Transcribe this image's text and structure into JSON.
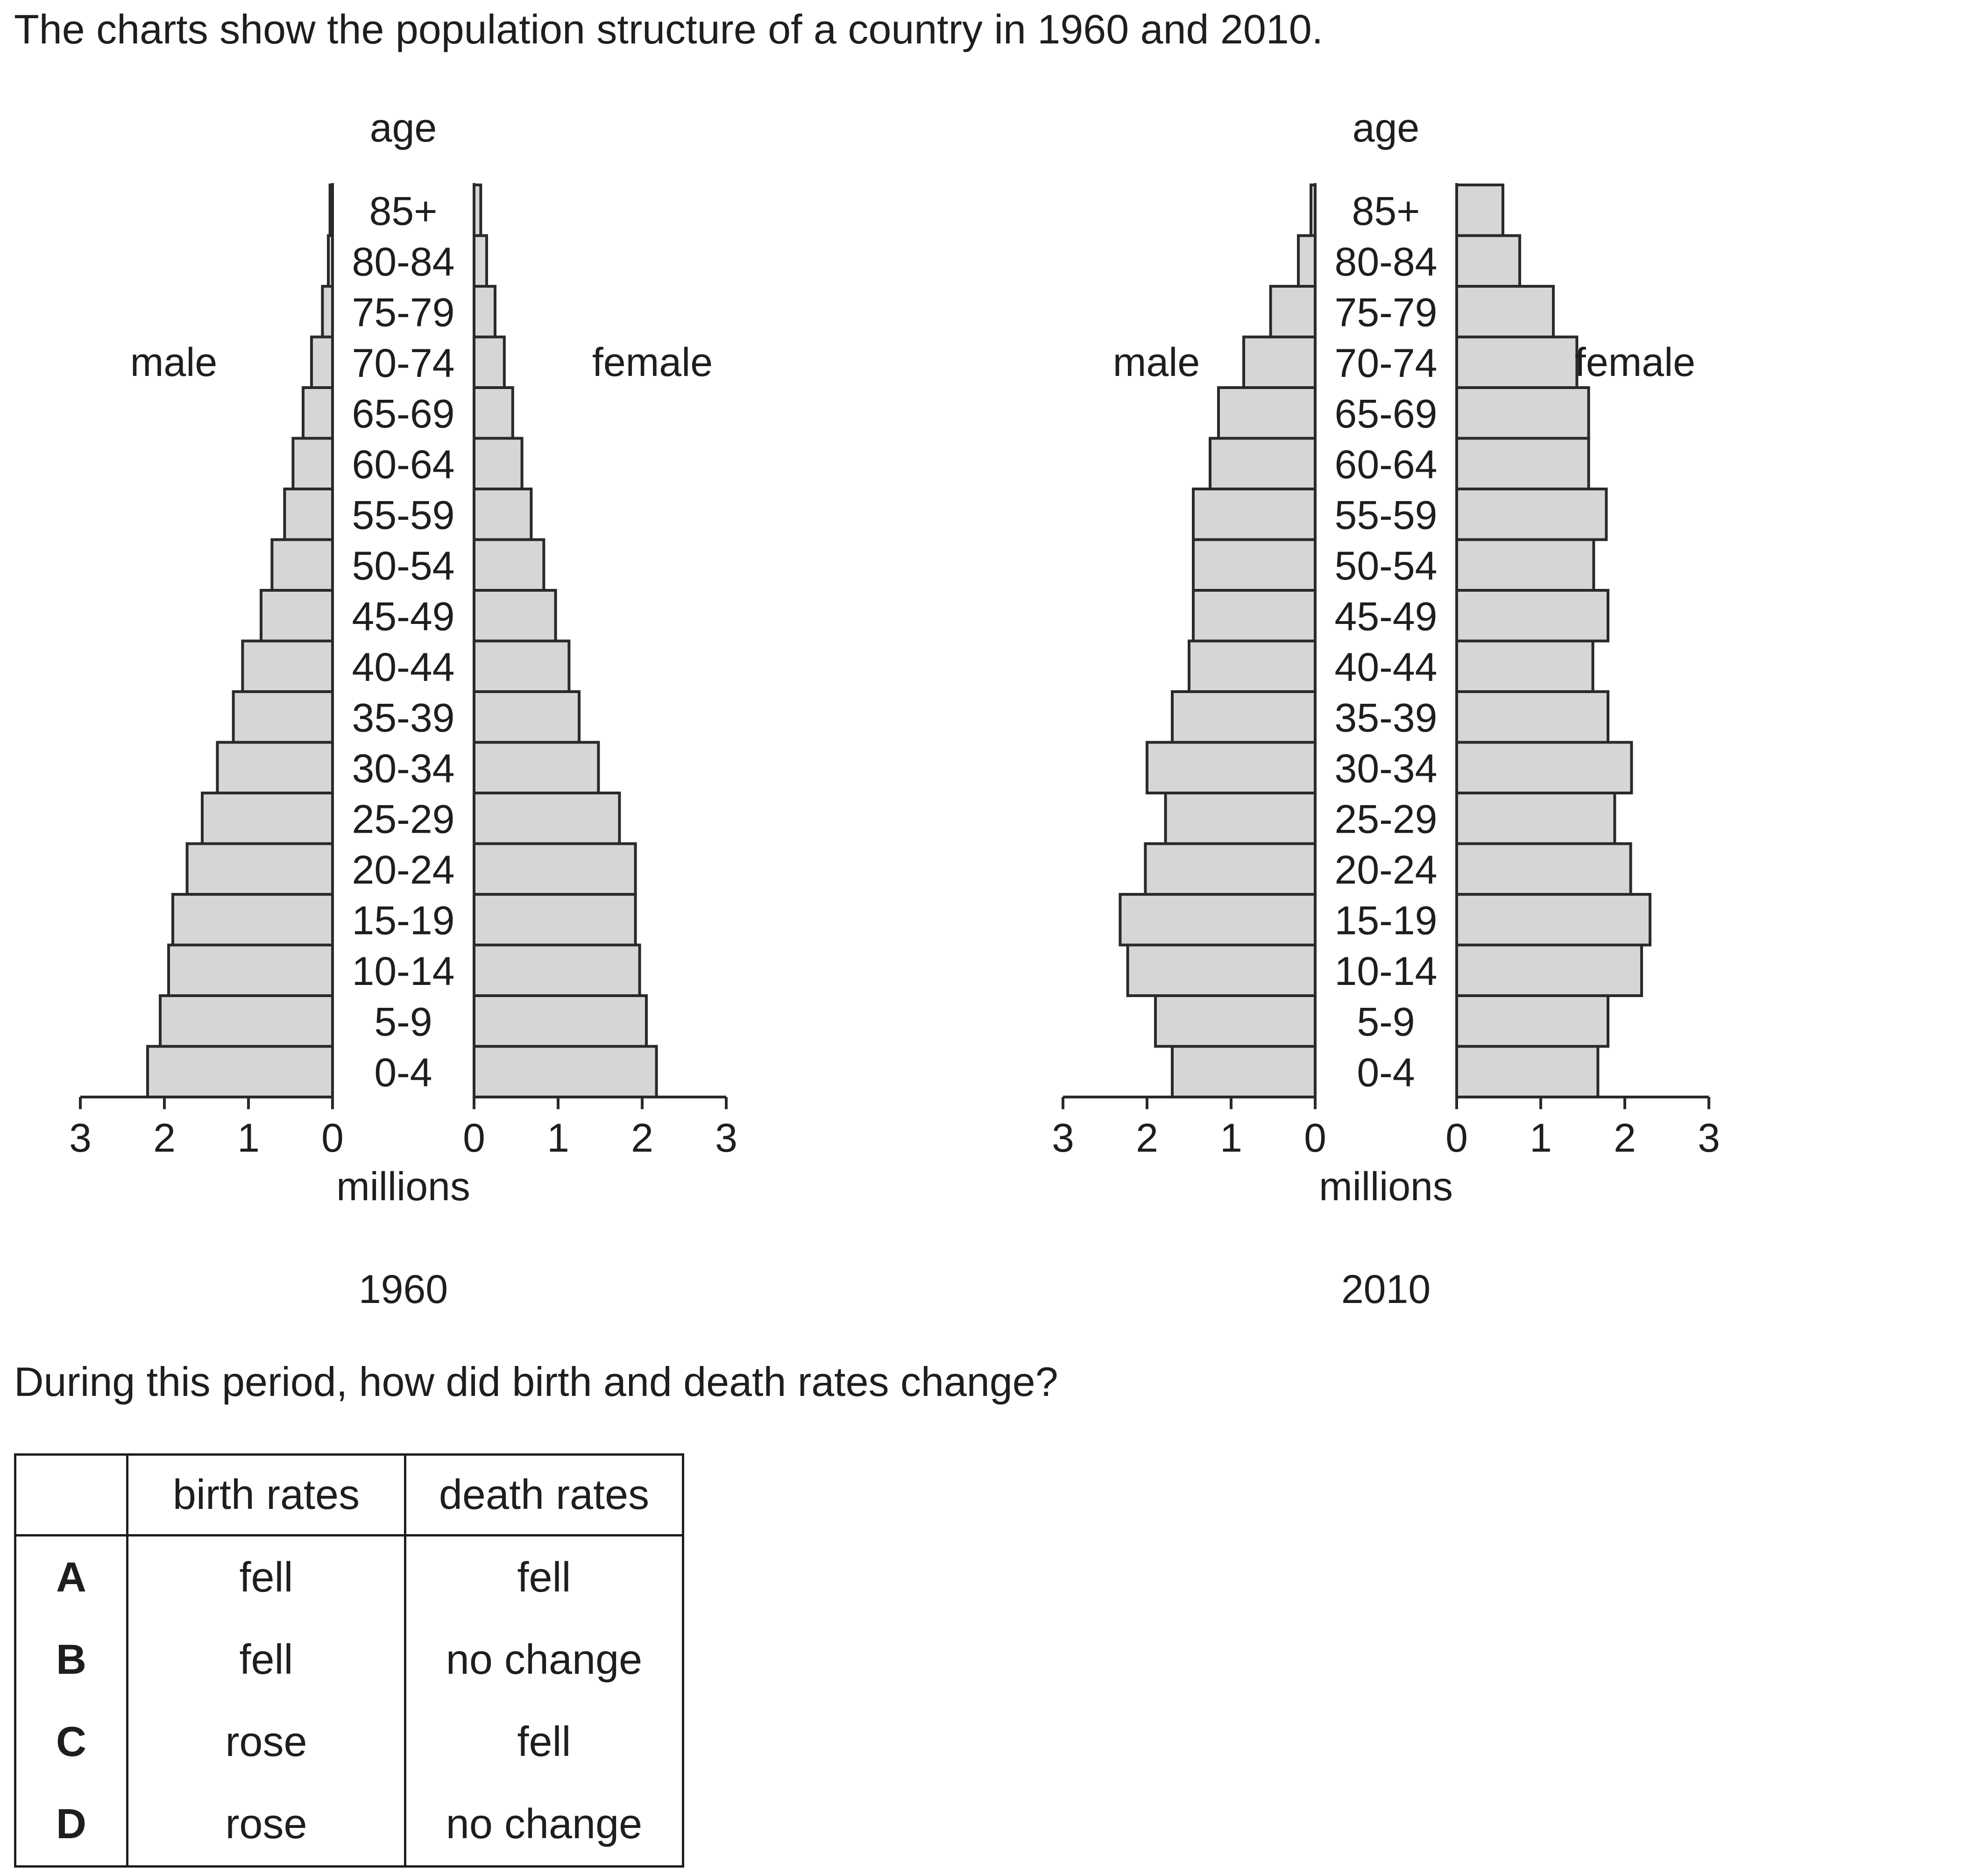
{
  "intro": "The charts show the population structure of a country in 1960 and 2010.",
  "question": "During this period, how did birth and death rates change?",
  "chart_data": [
    {
      "type": "bar",
      "orientation": "horizontal",
      "layout": "population-pyramid",
      "title": "1960",
      "age_label": "age",
      "unit_label": "millions",
      "left_label": "male",
      "right_label": "female",
      "categories": [
        "85+",
        "80-84",
        "75-79",
        "70-74",
        "65-69",
        "60-64",
        "55-59",
        "50-54",
        "45-49",
        "40-44",
        "35-39",
        "30-34",
        "25-29",
        "20-24",
        "15-19",
        "10-14",
        "5-9",
        "0-4"
      ],
      "series": [
        {
          "name": "male",
          "values": [
            0.03,
            0.05,
            0.12,
            0.25,
            0.35,
            0.47,
            0.57,
            0.72,
            0.85,
            1.07,
            1.18,
            1.37,
            1.55,
            1.73,
            1.9,
            1.95,
            2.05,
            2.2
          ]
        },
        {
          "name": "female",
          "values": [
            0.08,
            0.15,
            0.25,
            0.36,
            0.46,
            0.57,
            0.68,
            0.83,
            0.97,
            1.13,
            1.25,
            1.48,
            1.73,
            1.92,
            1.92,
            1.97,
            2.05,
            2.17
          ]
        }
      ],
      "xlim": [
        0,
        3
      ],
      "xticks": [
        "0",
        "1",
        "2",
        "3"
      ]
    },
    {
      "type": "bar",
      "orientation": "horizontal",
      "layout": "population-pyramid",
      "title": "2010",
      "age_label": "age",
      "unit_label": "millions",
      "left_label": "male",
      "right_label": "female",
      "categories": [
        "85+",
        "80-84",
        "75-79",
        "70-74",
        "65-69",
        "60-64",
        "55-59",
        "50-54",
        "45-49",
        "40-44",
        "35-39",
        "30-34",
        "25-29",
        "20-24",
        "15-19",
        "10-14",
        "5-9",
        "0-4"
      ],
      "series": [
        {
          "name": "male",
          "values": [
            0.05,
            0.2,
            0.53,
            0.85,
            1.15,
            1.25,
            1.45,
            1.45,
            1.45,
            1.5,
            1.7,
            2.0,
            1.78,
            2.02,
            2.32,
            2.23,
            1.9,
            1.7
          ]
        },
        {
          "name": "female",
          "values": [
            0.55,
            0.75,
            1.15,
            1.43,
            1.57,
            1.57,
            1.78,
            1.63,
            1.8,
            1.62,
            1.8,
            2.08,
            1.88,
            2.07,
            2.3,
            2.2,
            1.8,
            1.68
          ]
        }
      ],
      "xlim": [
        0,
        3
      ],
      "xticks": [
        "0",
        "1",
        "2",
        "3"
      ]
    }
  ],
  "table": {
    "headers": [
      "",
      "birth rates",
      "death rates"
    ],
    "rows": [
      {
        "option": "A",
        "birth": "fell",
        "death": "fell"
      },
      {
        "option": "B",
        "birth": "fell",
        "death": "no change"
      },
      {
        "option": "C",
        "birth": "rose",
        "death": "fell"
      },
      {
        "option": "D",
        "birth": "rose",
        "death": "no change"
      }
    ]
  },
  "colors": {
    "bar_fill": "#d6d6d6",
    "stroke": "#2a2a2a",
    "text": "#1e1e1e"
  }
}
